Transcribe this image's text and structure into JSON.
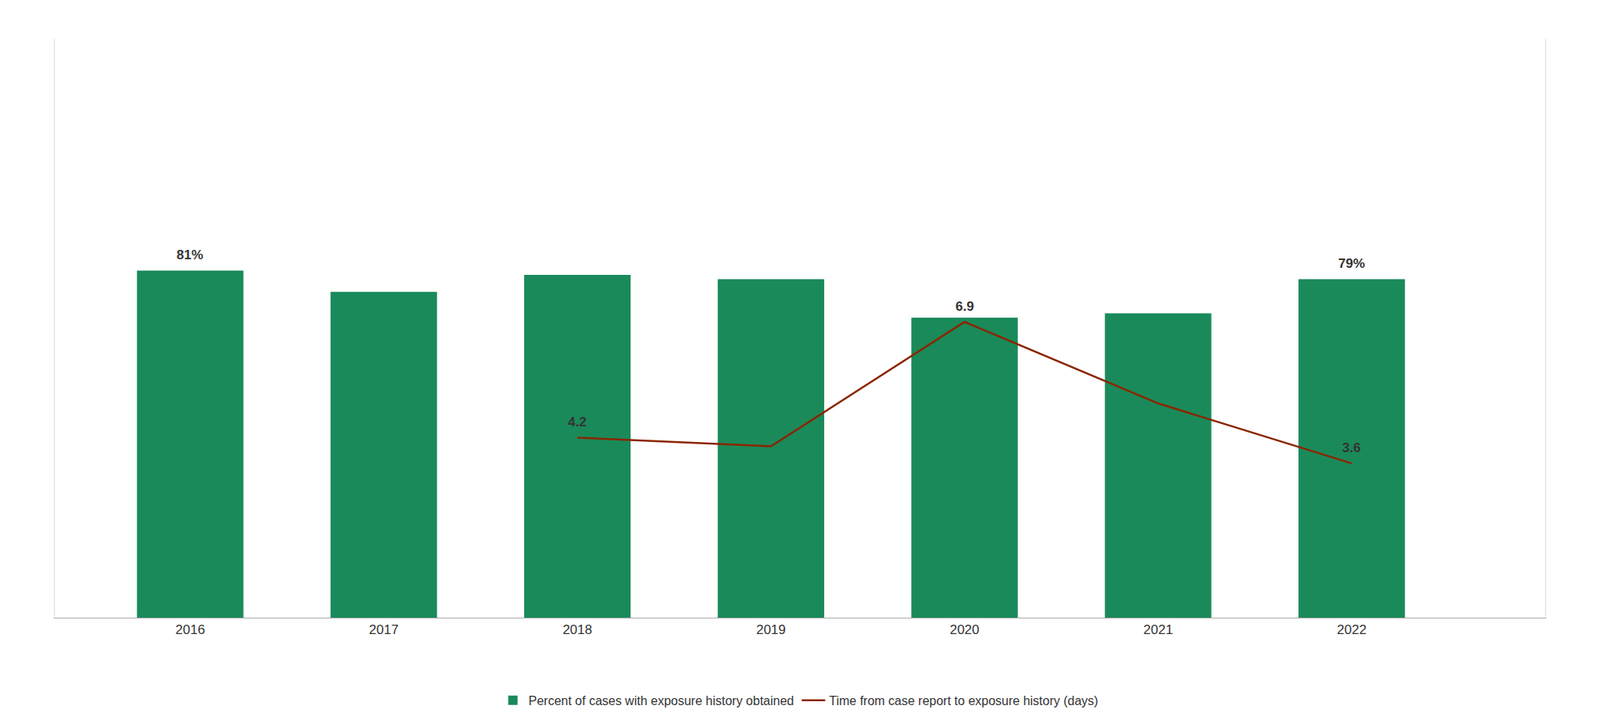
{
  "chart_data": {
    "type": "bar",
    "x": [
      2016,
      2017,
      2018,
      2019,
      2020,
      2021,
      2022
    ],
    "xlim": [
      2015.3,
      2023.0
    ],
    "xticks": [
      2016,
      2017,
      2018,
      2019,
      2020,
      2021,
      2022
    ],
    "ylim": [
      0,
      135
    ],
    "y2lim": [
      0,
      13.5
    ],
    "grid": false,
    "legend": "bottom",
    "tick_labels": "x",
    "series": [
      {
        "name": "Percent of cases with exposure history obtained",
        "type": "bar",
        "color": "#1a8a5a",
        "values": [
          81,
          76,
          80,
          79,
          70,
          71,
          79
        ],
        "value_labels": [
          "81%",
          null,
          null,
          null,
          null,
          null,
          "79%"
        ]
      },
      {
        "name": "Time from case report to exposure history (days)",
        "type": "line",
        "axis": "y2",
        "color": "#8B2500",
        "values": [
          null,
          null,
          4.2,
          4.0,
          6.9,
          5.0,
          3.6
        ],
        "value_labels": [
          null,
          null,
          "4.2",
          null,
          "6.9",
          null,
          "3.6"
        ]
      }
    ]
  }
}
